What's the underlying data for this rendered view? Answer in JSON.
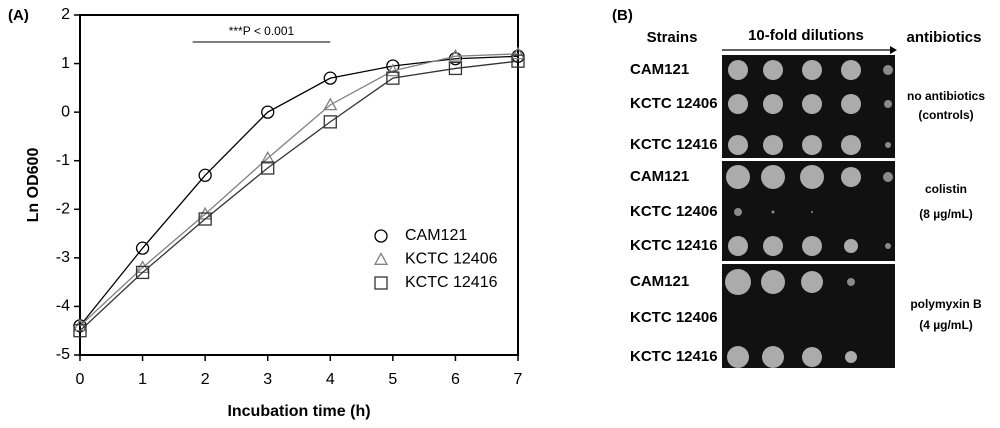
{
  "chart_data": {
    "type": "line",
    "panel_label": "(A)",
    "xlabel": "Incubation time (h)",
    "ylabel": "Ln OD600",
    "x": [
      0,
      1,
      2,
      3,
      4,
      5,
      6,
      7
    ],
    "xlim": [
      0,
      7
    ],
    "xticks": [
      0,
      1,
      2,
      3,
      4,
      5,
      6,
      7
    ],
    "ylim": [
      -5,
      2
    ],
    "yticks": [
      -5,
      -4,
      -3,
      -2,
      -1,
      0,
      1,
      2
    ],
    "annotation": "***P < 0.001",
    "series": [
      {
        "name": "CAM121",
        "color": "#000000",
        "marker": "circle",
        "values": [
          -4.4,
          -2.8,
          -1.3,
          0.0,
          0.7,
          0.95,
          1.1,
          1.15
        ]
      },
      {
        "name": "KCTC 12406",
        "color": "#808080",
        "marker": "triangle",
        "values": [
          -4.4,
          -3.2,
          -2.1,
          -0.95,
          0.15,
          0.85,
          1.15,
          1.2
        ]
      },
      {
        "name": "KCTC 12416",
        "color": "#333333",
        "marker": "square",
        "values": [
          -4.5,
          -3.3,
          -2.2,
          -1.15,
          -0.2,
          0.7,
          0.9,
          1.05
        ]
      }
    ]
  },
  "panel_b": {
    "panel_label": "(B)",
    "headers": [
      "Strains",
      "10-fold dilutions",
      "antibiotics"
    ],
    "rows": [
      "CAM121",
      "KCTC 12406",
      "KCTC 12416",
      "CAM121",
      "KCTC 12406",
      "KCTC 12416",
      "CAM121",
      "KCTC 12406",
      "KCTC 12416"
    ],
    "conditions": [
      [
        "no antibiotics",
        "(controls)"
      ],
      [
        "colistin",
        "(8 µg/mL)"
      ],
      [
        "polymyxin B",
        "(4 µg/mL)"
      ]
    ]
  }
}
